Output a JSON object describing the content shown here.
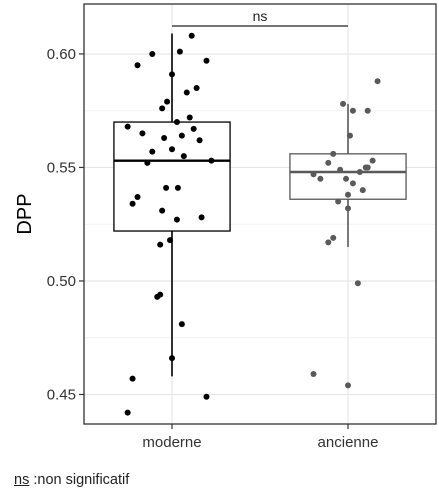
{
  "chart_data": {
    "type": "box",
    "ylabel": "DPP",
    "xlabel": "",
    "categories": [
      "moderne",
      "ancienne"
    ],
    "ylim": [
      0.437,
      0.622
    ],
    "yticks": [
      0.45,
      0.5,
      0.55,
      0.6
    ],
    "ytick_labels": [
      "0.45",
      "0.50",
      "0.55",
      "0.60"
    ],
    "grid": true,
    "boxes": [
      {
        "category": "moderne",
        "whisker_low": 0.458,
        "q1": 0.522,
        "median": 0.553,
        "q3": 0.57,
        "whisker_high": 0.609,
        "color": "#000000"
      },
      {
        "category": "ancienne",
        "whisker_low": 0.515,
        "q1": 0.536,
        "median": 0.548,
        "q3": 0.556,
        "whisker_high": 0.578,
        "color": "#595959"
      }
    ],
    "points": [
      {
        "category": "moderne",
        "color": "#000000",
        "x_offset": [
          0.2,
          -0.2,
          0.08,
          0.35,
          -0.35,
          0.0,
          0.25,
          -0.05,
          -0.1,
          0.15,
          0.18,
          -0.45,
          0.05,
          0.22,
          -0.3,
          0.1,
          -0.08,
          0.28,
          0.0,
          -0.2,
          0.12,
          -0.25,
          0.4,
          0.06,
          -0.06,
          -0.35,
          -0.1,
          0.3,
          -0.4,
          0.05,
          -0.02,
          -0.12,
          -0.12,
          0.1,
          0.0,
          -0.15,
          -0.4,
          0.35,
          -0.45
        ],
        "y": [
          0.608,
          0.6,
          0.601,
          0.597,
          0.595,
          0.591,
          0.585,
          0.579,
          0.576,
          0.583,
          0.572,
          0.568,
          0.57,
          0.567,
          0.565,
          0.564,
          0.563,
          0.562,
          0.558,
          0.557,
          0.555,
          0.552,
          0.553,
          0.541,
          0.541,
          0.537,
          0.531,
          0.528,
          0.534,
          0.527,
          0.518,
          0.516,
          0.494,
          0.481,
          0.466,
          0.493,
          0.457,
          0.449,
          0.442
        ]
      },
      {
        "category": "ancienne",
        "color": "#5a5a5a",
        "x_offset": [
          0.3,
          -0.05,
          0.05,
          0.2,
          0.02,
          -0.15,
          0.25,
          -0.2,
          -0.35,
          0.2,
          -0.08,
          0.12,
          -0.02,
          0.15,
          0.0,
          -0.28,
          0.05,
          0.0,
          0.18,
          -0.1,
          -0.15,
          -0.2,
          0.1,
          -0.35,
          0.0
        ],
        "y": [
          0.588,
          0.578,
          0.575,
          0.575,
          0.564,
          0.556,
          0.553,
          0.552,
          0.547,
          0.55,
          0.549,
          0.548,
          0.545,
          0.54,
          0.538,
          0.545,
          0.543,
          0.532,
          0.55,
          0.535,
          0.519,
          0.517,
          0.499,
          0.459,
          0.454
        ]
      }
    ],
    "comparison": {
      "groups": [
        "moderne",
        "ancienne"
      ],
      "label": "ns"
    }
  },
  "footnote": {
    "abbr": "ns",
    "text": " :non significatif"
  }
}
